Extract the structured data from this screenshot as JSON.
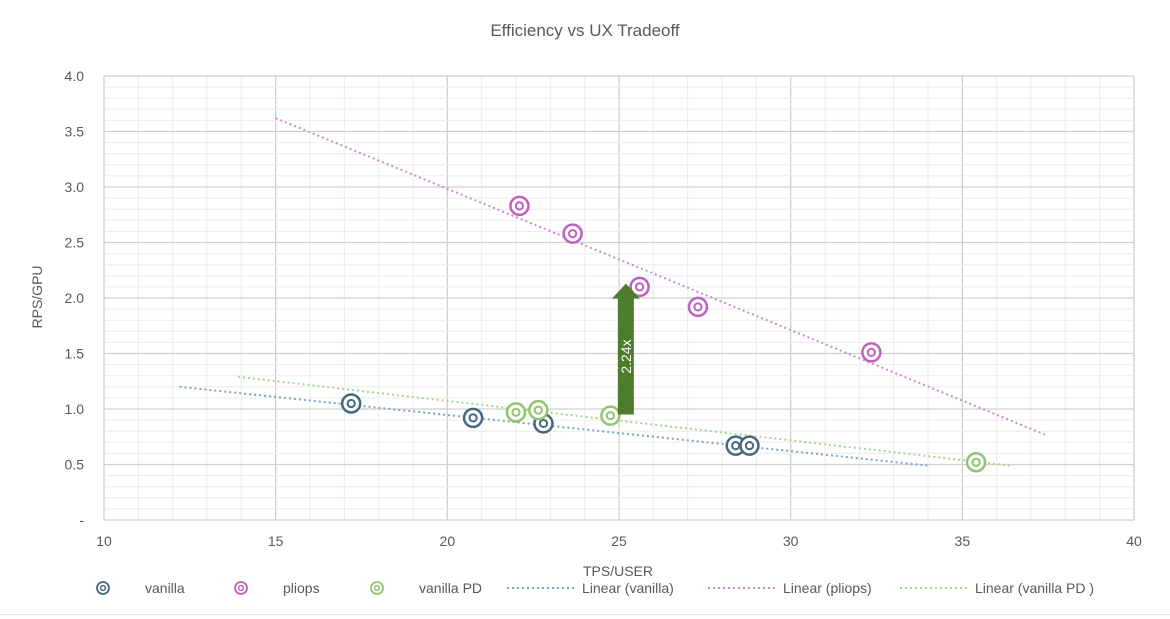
{
  "chart_data": {
    "type": "scatter",
    "title": "Efficiency vs UX Tradeoff",
    "xlabel": "TPS/USER",
    "ylabel": "RPS/GPU",
    "xlim": [
      10,
      40
    ],
    "ylim": [
      0,
      4
    ],
    "x_ticks": [
      "10",
      "15",
      "20",
      "25",
      "30",
      "35",
      "40"
    ],
    "y_ticks": [
      "-",
      "0.5",
      "1.0",
      "1.5",
      "2.0",
      "2.5",
      "3.0",
      "3.5",
      "4.0"
    ],
    "grid": true,
    "legend_position": "bottom",
    "series": [
      {
        "name": "vanilla",
        "color": "#44697d",
        "x": [
          17.2,
          20.75,
          22.8,
          28.4,
          28.8
        ],
        "y": [
          1.05,
          0.92,
          0.87,
          0.67,
          0.67
        ]
      },
      {
        "name": "pliops",
        "color": "#bf5fbf",
        "x": [
          22.1,
          23.65,
          25.6,
          27.3,
          32.35
        ],
        "y": [
          2.83,
          2.58,
          2.1,
          1.92,
          1.51
        ]
      },
      {
        "name": "vanilla PD",
        "color": "#8fc46f",
        "x": [
          22.0,
          22.65,
          24.75,
          35.4
        ],
        "y": [
          0.97,
          0.99,
          0.94,
          0.52
        ]
      }
    ],
    "trendlines": [
      {
        "name": "Linear (vanilla)",
        "color": "#7ea3c6",
        "x": [
          12.2,
          34.0
        ],
        "y": [
          1.2,
          0.49
        ]
      },
      {
        "name": "Linear (pliops)",
        "color": "#c98ad0",
        "x": [
          15.0,
          37.4
        ],
        "y": [
          3.62,
          0.77
        ]
      },
      {
        "name": "Linear (vanilla PD )",
        "color": "#a9d38e",
        "x": [
          13.9,
          36.4
        ],
        "y": [
          1.29,
          0.49
        ]
      }
    ],
    "annotations": [
      {
        "text": "2.24x",
        "x": 25.2,
        "y_from": 0.95,
        "y_to": 2.13,
        "color": "#4d7c2a"
      }
    ]
  }
}
